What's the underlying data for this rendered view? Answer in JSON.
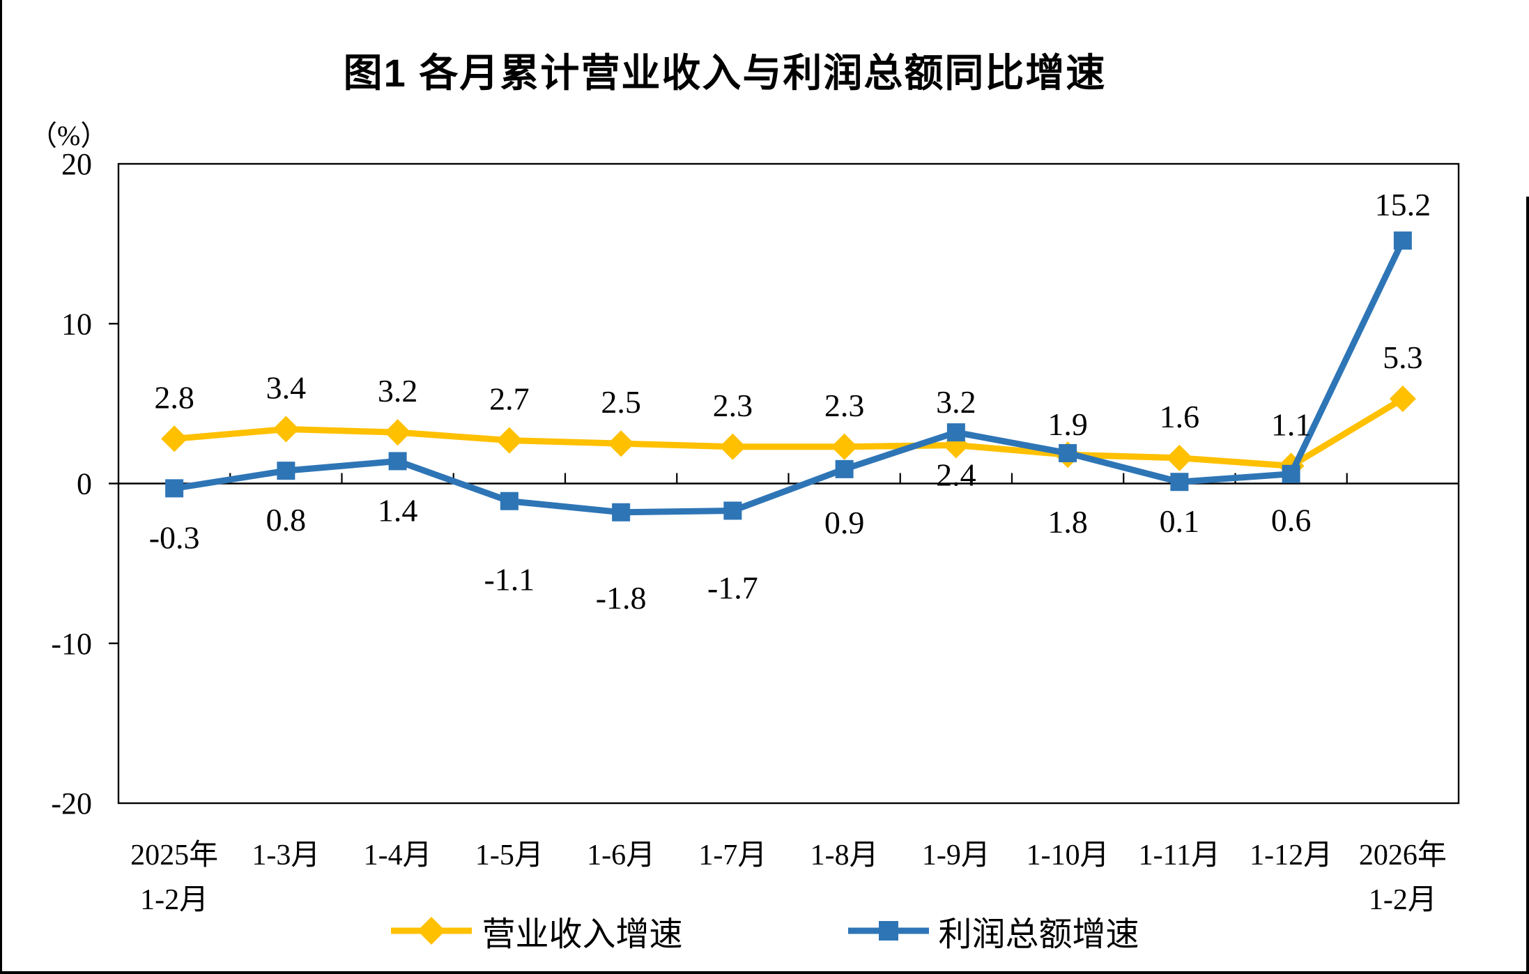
{
  "figure": {
    "title": "图1 各月累计营业收入与利润总额同比增速"
  },
  "chart_data": {
    "type": "line",
    "title": "图1 各月累计营业收入与利润总额同比增速",
    "y_unit_label": "（%）",
    "ylim": [
      -20,
      20
    ],
    "yticks": [
      20,
      10,
      0,
      -10,
      -20
    ],
    "grid": false,
    "legend_position": "bottom",
    "categories": [
      "2025年\n1-2月",
      "1-3月",
      "1-4月",
      "1-5月",
      "1-6月",
      "1-7月",
      "1-8月",
      "1-9月",
      "1-10月",
      "1-11月",
      "1-12月",
      "2026年\n1-2月"
    ],
    "series": [
      {
        "name": "营业收入增速",
        "color": "#FFC000",
        "marker": "diamond",
        "values": [
          2.8,
          3.4,
          3.2,
          2.7,
          2.5,
          2.3,
          2.3,
          2.4,
          1.8,
          1.6,
          1.1,
          5.3
        ]
      },
      {
        "name": "利润总额增速",
        "color": "#2E75B6",
        "marker": "square",
        "values": [
          -0.3,
          0.8,
          1.4,
          -1.1,
          -1.8,
          -1.7,
          0.9,
          3.2,
          1.9,
          0.1,
          0.6,
          15.2
        ]
      }
    ]
  }
}
